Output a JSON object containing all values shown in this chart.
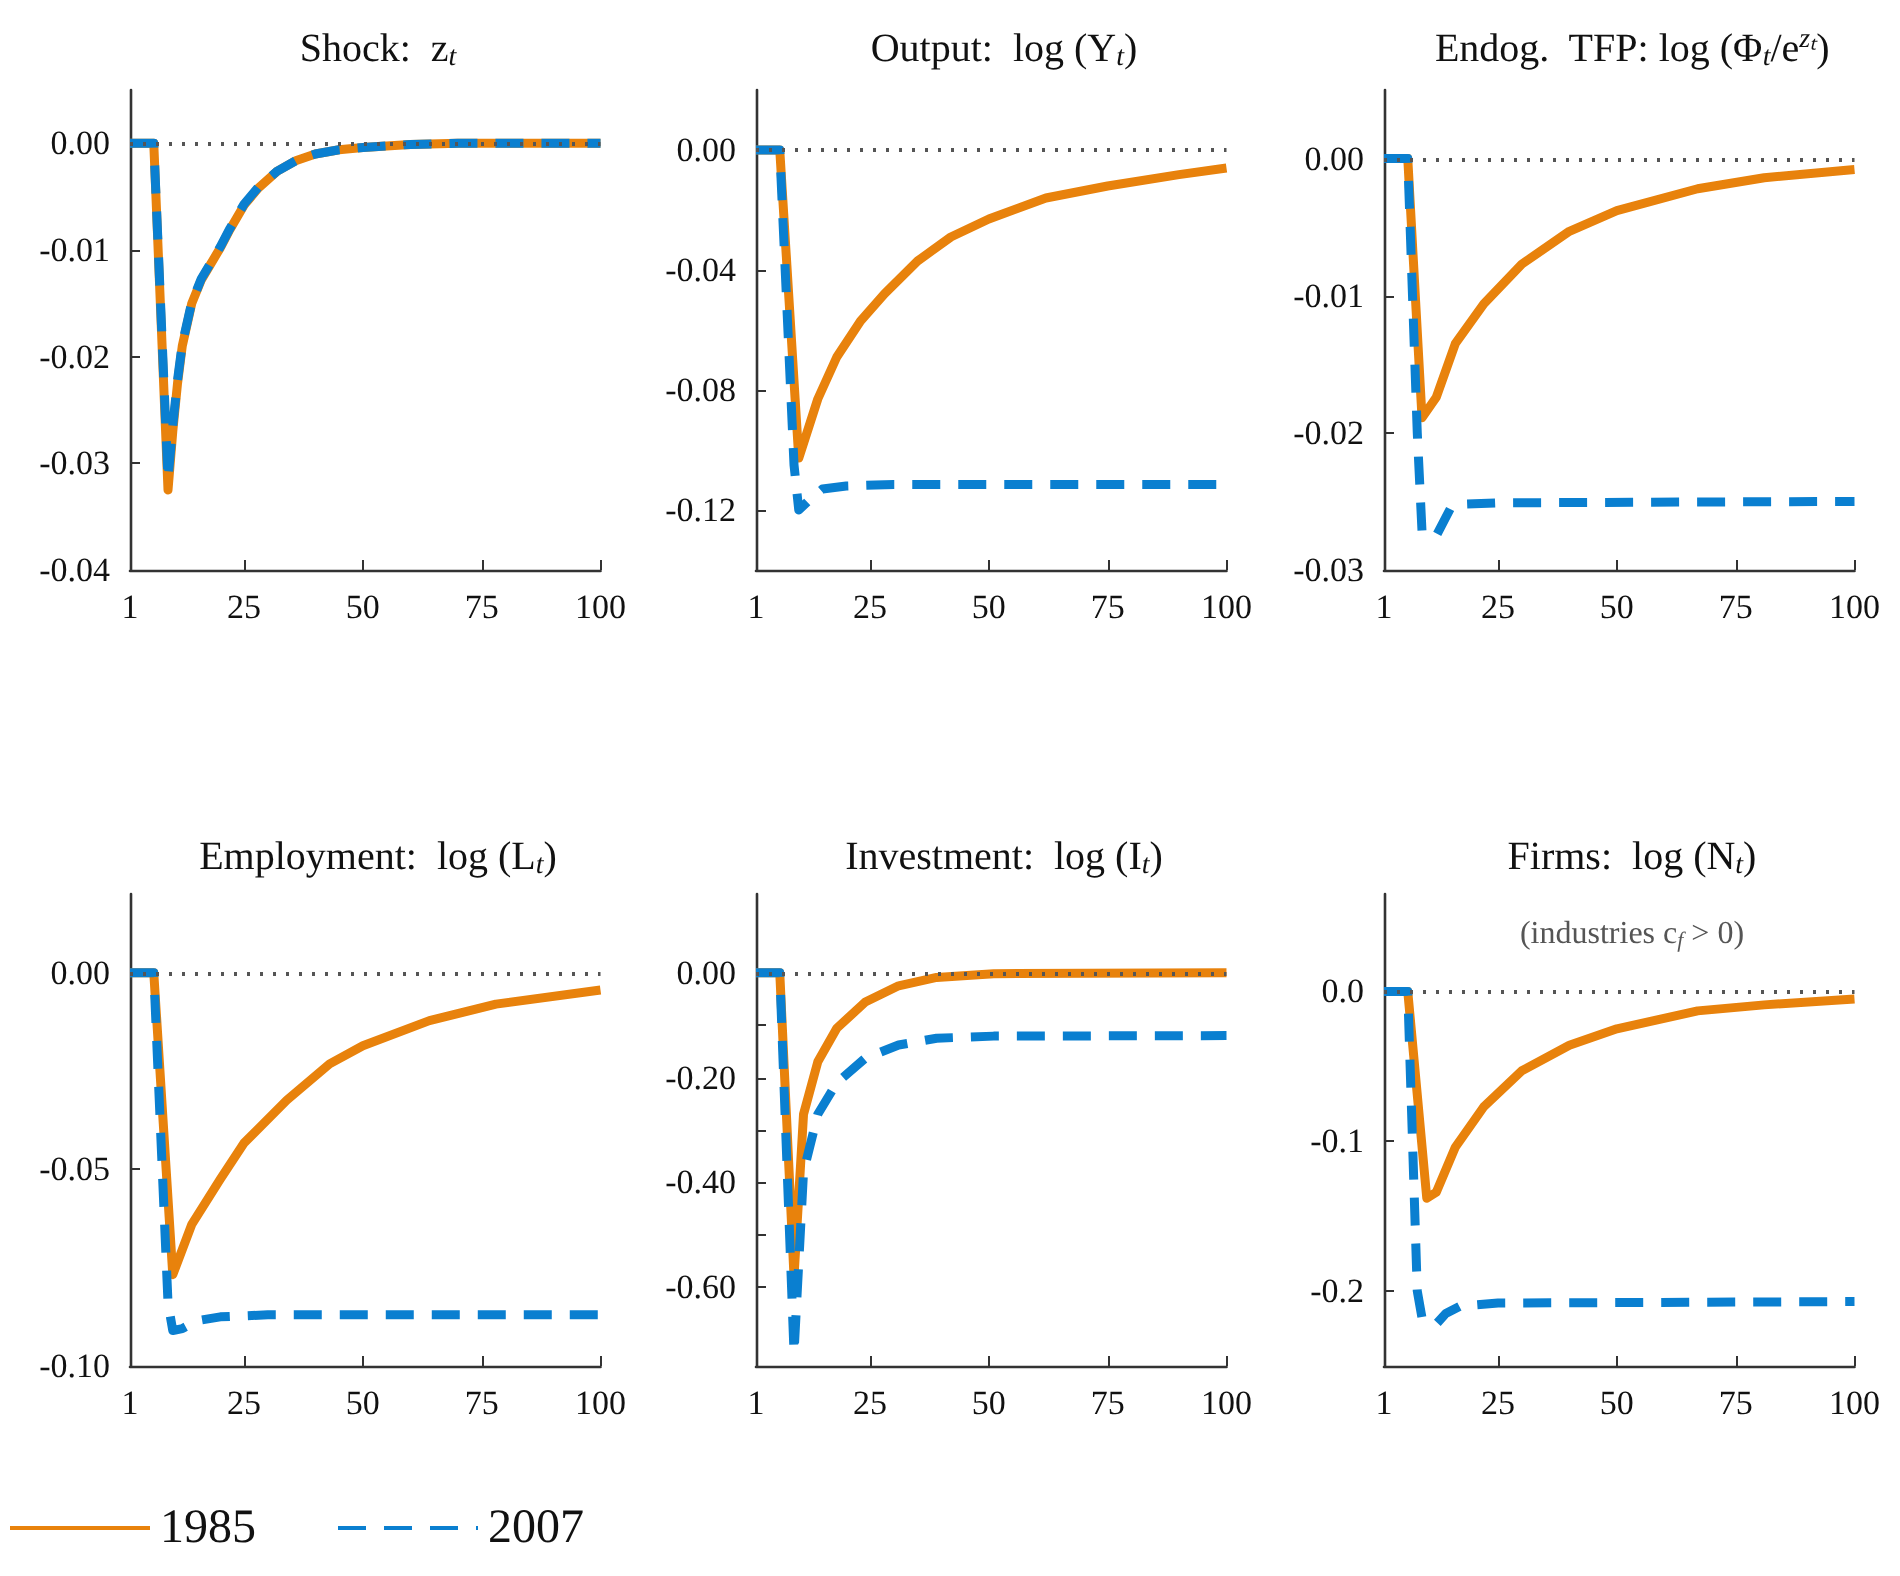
{
  "chart_data": [
    {
      "type": "line",
      "title": "Shock:  z$_{t}$",
      "xlim": [
        1,
        100
      ],
      "xticks": [
        1,
        25,
        50,
        75,
        100
      ],
      "ylim": [
        -0.04,
        0.005
      ],
      "yticks": [
        {
          "value": 0,
          "label": "0.00"
        },
        {
          "value": -0.01,
          "label": "-0.01"
        },
        {
          "value": -0.02,
          "label": "-0.02"
        },
        {
          "value": -0.03,
          "label": "-0.03"
        },
        {
          "value": -0.04,
          "label": "-0.04"
        }
      ],
      "ref_lines": [
        {
          "axis": "y",
          "value": 0,
          "color": "#555555",
          "line_style": "dotted"
        }
      ],
      "series": [
        {
          "color": "#e8820c",
          "line_style": "solid",
          "x": [
            1,
            6,
            9,
            10,
            11,
            12,
            14,
            16,
            18,
            20,
            22,
            25,
            28,
            32,
            36,
            40,
            45,
            50,
            60,
            70,
            100
          ],
          "values": [
            0,
            0,
            -0.0325,
            -0.027,
            -0.0225,
            -0.019,
            -0.015,
            -0.0128,
            -0.0113,
            -0.0098,
            -0.0081,
            -0.0058,
            -0.0042,
            -0.0026,
            -0.0016,
            -0.001,
            -0.0006,
            -0.0004,
            -0.0001,
            0,
            0
          ]
        },
        {
          "color": "#0a7fd0",
          "line_style": "dashed",
          "x": [
            1,
            6,
            9,
            10,
            11,
            12,
            14,
            16,
            18,
            20,
            22,
            25,
            28,
            32,
            36,
            40,
            45,
            50,
            60,
            70,
            100
          ],
          "values": [
            0,
            0,
            -0.0315,
            -0.0265,
            -0.0222,
            -0.0188,
            -0.0149,
            -0.0127,
            -0.0112,
            -0.0097,
            -0.008,
            -0.0057,
            -0.0041,
            -0.0026,
            -0.0016,
            -0.001,
            -0.0006,
            -0.0004,
            -0.0001,
            0,
            0
          ]
        }
      ]
    },
    {
      "type": "line",
      "title": "Output:  log (Y$_{t}$)",
      "xlim": [
        1,
        100
      ],
      "xticks": [
        1,
        25,
        50,
        75,
        100
      ],
      "ylim": [
        -0.14,
        0.02
      ],
      "yticks": [
        {
          "value": 0,
          "label": "0.00"
        },
        {
          "value": -0.04,
          "label": "-0.04"
        },
        {
          "value": -0.08,
          "label": "-0.08"
        },
        {
          "value": -0.12,
          "label": "-0.12"
        }
      ],
      "ref_lines": [
        {
          "axis": "y",
          "value": 0,
          "color": "#555555",
          "line_style": "dotted"
        }
      ],
      "series": [
        {
          "color": "#e8820c",
          "line_style": "solid",
          "x": [
            1,
            6,
            10,
            14,
            18,
            23,
            28,
            35,
            42,
            50,
            62,
            75,
            90,
            100
          ],
          "values": [
            0,
            0,
            -0.1027,
            -0.083,
            -0.069,
            -0.057,
            -0.048,
            -0.037,
            -0.029,
            -0.023,
            -0.016,
            -0.012,
            -0.0082,
            -0.006
          ]
        },
        {
          "color": "#0a7fd0",
          "line_style": "dashed",
          "x": [
            1,
            6,
            9,
            10,
            12,
            15,
            20,
            30,
            100
          ],
          "values": [
            0,
            0,
            -0.105,
            -0.12,
            -0.117,
            -0.113,
            -0.112,
            -0.1115,
            -0.1115
          ]
        }
      ]
    },
    {
      "type": "line",
      "title": "Endog.  TFP: log (Φ$_{t}$/e$^{zₜ}$)",
      "xlim": [
        1,
        100
      ],
      "xticks": [
        1,
        25,
        50,
        75,
        100
      ],
      "ylim": [
        -0.03,
        0.005
      ],
      "yticks": [
        {
          "value": 0,
          "label": "0.00"
        },
        {
          "value": -0.01,
          "label": "-0.01"
        },
        {
          "value": -0.02,
          "label": "-0.02"
        },
        {
          "value": -0.03,
          "label": "-0.03"
        }
      ],
      "ref_lines": [
        {
          "axis": "y",
          "value": 0,
          "color": "#555555",
          "line_style": "dotted"
        }
      ],
      "series": [
        {
          "color": "#e8820c",
          "line_style": "solid",
          "x": [
            1,
            6,
            9,
            12,
            16,
            22,
            30,
            40,
            50,
            67,
            81,
            100
          ],
          "values": [
            0,
            0,
            -0.0189,
            -0.0174,
            -0.0135,
            -0.0106,
            -0.0077,
            -0.0053,
            -0.0038,
            -0.0022,
            -0.0014,
            -0.0008
          ]
        },
        {
          "color": "#0a7fd0",
          "line_style": "dashed",
          "x": [
            1,
            6,
            8,
            9,
            12,
            15,
            18,
            25,
            100
          ],
          "values": [
            0,
            0,
            -0.02,
            -0.0272,
            -0.0275,
            -0.0255,
            -0.0252,
            -0.0251,
            -0.025
          ]
        }
      ]
    },
    {
      "type": "line",
      "title": "Employment:  log (L$_{t}$)",
      "xlim": [
        1,
        100
      ],
      "xticks": [
        1,
        25,
        50,
        75,
        100
      ],
      "ylim": [
        -0.1,
        0.02
      ],
      "yticks": [
        {
          "value": 0,
          "label": "0.00"
        },
        {
          "value": -0.05,
          "label": "-0.05"
        },
        {
          "value": -0.1,
          "label": "-0.10"
        }
      ],
      "ref_lines": [
        {
          "axis": "y",
          "value": 0,
          "color": "#555555",
          "line_style": "dotted"
        }
      ],
      "legend": "bottom left",
      "series": [
        {
          "name": "1985",
          "color": "#e8820c",
          "line_style": "solid",
          "x": [
            1,
            6,
            10,
            14,
            20,
            25,
            34,
            43,
            50,
            64,
            78,
            100
          ],
          "values": [
            0,
            0,
            -0.0768,
            -0.064,
            -0.0525,
            -0.0433,
            -0.0324,
            -0.0232,
            -0.0186,
            -0.0122,
            -0.008,
            -0.0044
          ]
        },
        {
          "name": "2007",
          "color": "#0a7fd0",
          "line_style": "dashed",
          "x": [
            1,
            6,
            9,
            10,
            12,
            15,
            20,
            30,
            100
          ],
          "values": [
            0,
            0,
            -0.084,
            -0.091,
            -0.0905,
            -0.0885,
            -0.0875,
            -0.087,
            -0.087
          ]
        }
      ]
    },
    {
      "type": "line",
      "title": "Investment:  log (I$_{t}$)",
      "xlim": [
        1,
        100
      ],
      "xticks": [
        1,
        25,
        50,
        75,
        100
      ],
      "ylim": [
        -0.75,
        0.15
      ],
      "yticks": [
        {
          "value": 0,
          "label": "0.00"
        },
        {
          "value": -0.1,
          "label": null
        },
        {
          "value": -0.2,
          "label": "-0.20"
        },
        {
          "value": -0.3,
          "label": null
        },
        {
          "value": -0.4,
          "label": "-0.40"
        },
        {
          "value": -0.5,
          "label": null
        },
        {
          "value": -0.6,
          "label": "-0.60"
        }
      ],
      "ref_lines": [
        {
          "axis": "y",
          "value": 0,
          "color": "#555555",
          "line_style": "dotted"
        }
      ],
      "series": [
        {
          "color": "#e8820c",
          "line_style": "solid",
          "x": [
            1,
            6,
            9,
            11,
            14,
            18,
            24,
            31,
            39,
            51,
            100
          ],
          "values": [
            0,
            0,
            -0.58,
            -0.27,
            -0.17,
            -0.106,
            -0.056,
            -0.025,
            -0.009,
            -0.002,
            0
          ]
        },
        {
          "color": "#0a7fd0",
          "line_style": "dashed",
          "x": [
            1,
            6,
            9,
            11,
            14,
            18,
            24,
            31,
            39,
            51,
            100
          ],
          "values": [
            0,
            0,
            -0.725,
            -0.38,
            -0.27,
            -0.21,
            -0.163,
            -0.138,
            -0.125,
            -0.121,
            -0.12
          ]
        }
      ]
    },
    {
      "type": "line",
      "title": "Firms:  log (N$_{t}$)",
      "subtitle": "(industries c$_{f}$ > 0)",
      "xlim": [
        1,
        100
      ],
      "xticks": [
        1,
        25,
        50,
        75,
        100
      ],
      "ylim": [
        -0.25,
        0.065
      ],
      "yticks": [
        {
          "value": 0,
          "label": "0.0"
        },
        {
          "value": -0.1,
          "label": "-0.1"
        },
        {
          "value": -0.2,
          "label": "-0.2"
        }
      ],
      "ref_lines": [
        {
          "axis": "y",
          "value": 0,
          "color": "#555555",
          "line_style": "dotted"
        }
      ],
      "series": [
        {
          "color": "#e8820c",
          "line_style": "solid",
          "x": [
            1,
            6,
            10,
            12,
            16,
            22,
            30,
            40,
            50,
            67,
            81,
            100
          ],
          "values": [
            0,
            0,
            -0.138,
            -0.134,
            -0.104,
            -0.077,
            -0.053,
            -0.036,
            -0.025,
            -0.013,
            -0.009,
            -0.005
          ]
        },
        {
          "color": "#0a7fd0",
          "line_style": "dashed",
          "x": [
            1,
            6,
            8,
            9,
            12,
            14,
            17,
            25,
            100
          ],
          "values": [
            0,
            0,
            -0.2,
            -0.218,
            -0.222,
            -0.215,
            -0.21,
            -0.208,
            -0.207
          ]
        }
      ]
    }
  ]
}
